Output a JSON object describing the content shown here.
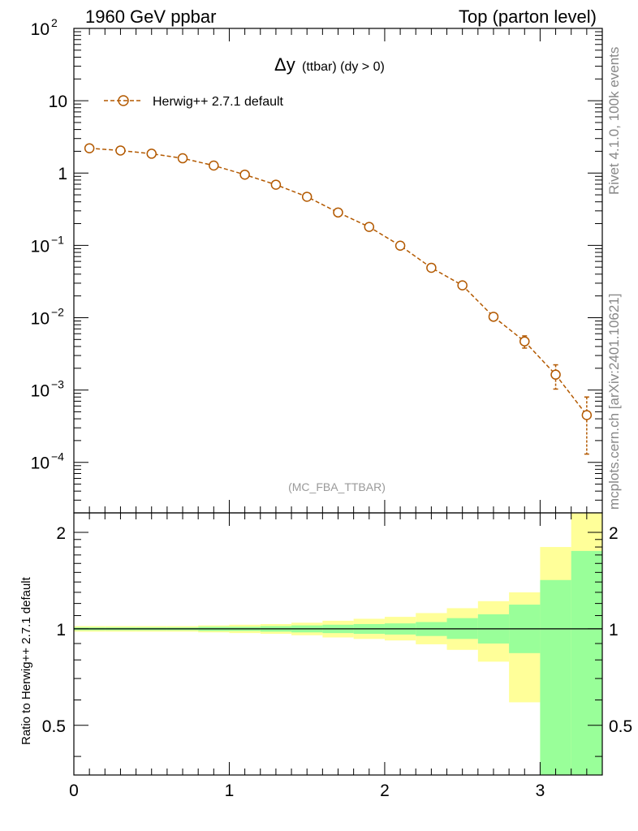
{
  "header": {
    "left": "1960 GeV ppbar",
    "right": "Top (parton level)"
  },
  "plot_title": {
    "main": "Δy",
    "sub": "(ttbar) (dy > 0)"
  },
  "analysis_tag": "(MC_FBA_TTBAR)",
  "side_text": {
    "rivet": "Rivet 4.1.0,  100k events",
    "source": "mcplots.cern.ch [arXiv:2401.10621]"
  },
  "ratio_ylabel": "Ratio to Herwig++ 2.7.1 default",
  "colors": {
    "series": "#b35900",
    "band_inner": "#99ff99",
    "band_outer": "#ffff99"
  },
  "chart_data": [
    {
      "type": "line",
      "panel": "main",
      "yscale": "log",
      "xlim": [
        0,
        3.4
      ],
      "ylim": [
        2e-05,
        100
      ],
      "grid": false,
      "legend_position": "top-left",
      "y_tick_labels": [
        "10^2",
        "10",
        "1",
        "10^-1",
        "10^-2",
        "10^-3",
        "10^-4"
      ],
      "series": [
        {
          "name": "Herwig++ 2.7.1 default",
          "marker": "open-circle",
          "line": "dashed",
          "x": [
            0.1,
            0.3,
            0.5,
            0.7,
            0.9,
            1.1,
            1.3,
            1.5,
            1.7,
            1.9,
            2.1,
            2.3,
            2.5,
            2.7,
            2.9,
            3.1,
            3.3
          ],
          "y": [
            2.2,
            2.05,
            1.85,
            1.6,
            1.27,
            0.95,
            0.69,
            0.47,
            0.285,
            0.18,
            0.099,
            0.049,
            0.028,
            0.0103,
            0.0047,
            0.00163,
            0.00045
          ],
          "yerr_low": [
            0.03,
            0.03,
            0.03,
            0.03,
            0.025,
            0.02,
            0.015,
            0.012,
            0.008,
            0.006,
            0.004,
            0.0025,
            0.002,
            0.0009,
            0.0009,
            0.0006,
            0.00032
          ],
          "yerr_high": [
            0.03,
            0.03,
            0.03,
            0.03,
            0.025,
            0.02,
            0.015,
            0.012,
            0.008,
            0.006,
            0.004,
            0.0025,
            0.002,
            0.0009,
            0.0009,
            0.0006,
            0.00035
          ]
        }
      ]
    },
    {
      "type": "area",
      "panel": "ratio",
      "ylim": [
        0.35,
        2.3
      ],
      "xlim": [
        0,
        3.4
      ],
      "xlabel": "",
      "ylabel": "Ratio to Herwig++ 2.7.1 default",
      "x_tick_labels": [
        "0",
        "1",
        "2",
        "3"
      ],
      "y_tick_labels": [
        "0.5",
        "1",
        "2"
      ],
      "reference_line": 1,
      "bins": [
        [
          0,
          0.2
        ],
        [
          0.2,
          0.4
        ],
        [
          0.4,
          0.6
        ],
        [
          0.6,
          0.8
        ],
        [
          0.8,
          1.0
        ],
        [
          1.0,
          1.2
        ],
        [
          1.2,
          1.4
        ],
        [
          1.4,
          1.6
        ],
        [
          1.6,
          1.8
        ],
        [
          1.8,
          2.0
        ],
        [
          2.0,
          2.2
        ],
        [
          2.2,
          2.4
        ],
        [
          2.4,
          2.6
        ],
        [
          2.6,
          2.8
        ],
        [
          2.8,
          3.0
        ],
        [
          3.0,
          3.2
        ],
        [
          3.2,
          3.4
        ]
      ],
      "inner_band": {
        "low": [
          0.99,
          0.99,
          0.99,
          0.99,
          0.985,
          0.985,
          0.98,
          0.975,
          0.97,
          0.965,
          0.96,
          0.95,
          0.93,
          0.9,
          0.84,
          0.35,
          0.35
        ],
        "high": [
          1.01,
          1.01,
          1.01,
          1.01,
          1.015,
          1.015,
          1.02,
          1.025,
          1.03,
          1.035,
          1.04,
          1.05,
          1.08,
          1.11,
          1.19,
          1.42,
          1.75
        ]
      },
      "outer_band": {
        "low": [
          0.98,
          0.98,
          0.98,
          0.98,
          0.975,
          0.97,
          0.965,
          0.955,
          0.94,
          0.93,
          0.92,
          0.895,
          0.86,
          0.79,
          0.59,
          0.35,
          0.35
        ],
        "high": [
          1.02,
          1.02,
          1.02,
          1.02,
          1.025,
          1.03,
          1.035,
          1.045,
          1.06,
          1.075,
          1.09,
          1.12,
          1.16,
          1.22,
          1.3,
          1.8,
          2.3
        ]
      }
    }
  ]
}
